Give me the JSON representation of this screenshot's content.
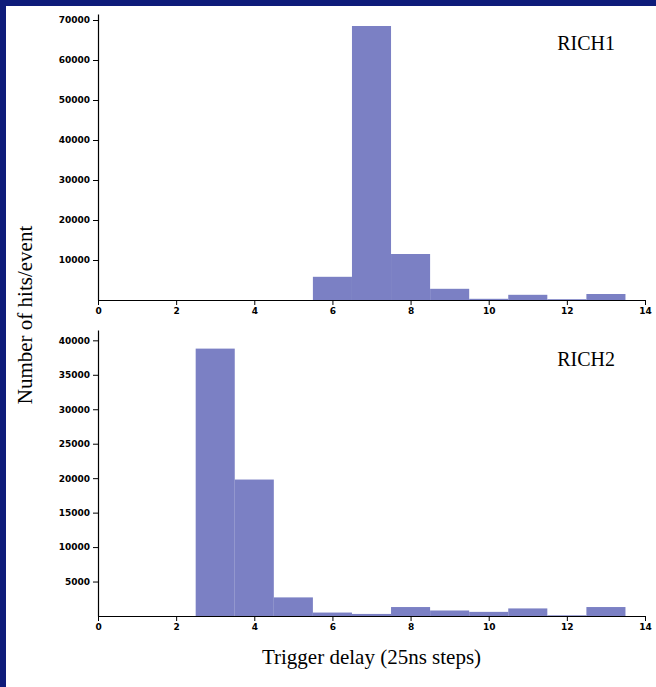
{
  "chart_data": [
    {
      "type": "histogram",
      "title": "RICH1",
      "ylabel": "Number of hits/event",
      "color": "#7b80c4",
      "bins": [
        5.5,
        6.5,
        7.5,
        8.5,
        9.5,
        10.5,
        11.5,
        12.5,
        13.5
      ],
      "counts": [
        5800,
        68500,
        11500,
        2800,
        300,
        1300,
        200,
        1500
      ],
      "xlim": [
        0,
        14
      ],
      "xticks": [
        0,
        2,
        4,
        6,
        8,
        10,
        12,
        14
      ],
      "ylim": [
        0,
        71500
      ],
      "yticks": [
        10000,
        20000,
        30000,
        40000,
        50000,
        60000,
        70000
      ]
    },
    {
      "type": "histogram",
      "title": "RICH2",
      "xlabel": "Trigger delay (25ns steps)",
      "color": "#7b80c4",
      "bins": [
        2.5,
        3.5,
        4.5,
        5.5,
        6.5,
        7.5,
        8.5,
        9.5,
        10.5,
        11.5,
        12.5,
        13.5
      ],
      "counts": [
        38800,
        19800,
        2700,
        500,
        300,
        1300,
        800,
        600,
        1100,
        100,
        1300
      ],
      "xlim": [
        0,
        14
      ],
      "xticks": [
        0,
        2,
        4,
        6,
        8,
        10,
        12,
        14
      ],
      "ylim": [
        0,
        41500
      ],
      "yticks": [
        5000,
        10000,
        15000,
        20000,
        25000,
        30000,
        35000,
        40000
      ]
    }
  ]
}
